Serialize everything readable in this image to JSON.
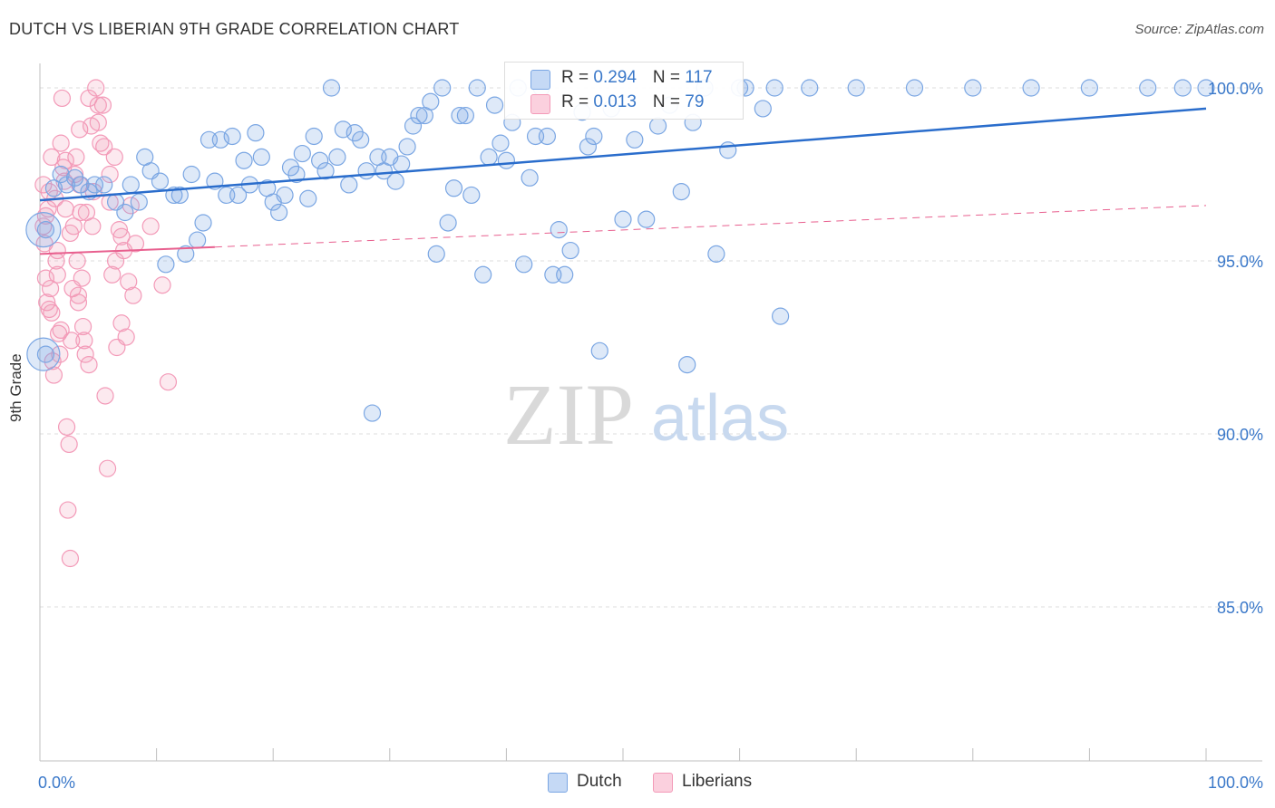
{
  "title": "DUTCH VS LIBERIAN 9TH GRADE CORRELATION CHART",
  "source": "Source: ZipAtlas.com",
  "watermark": {
    "zip": "ZIP",
    "atlas": "atlas"
  },
  "legend": {
    "rows": [
      {
        "r_label": "R = ",
        "r_value": "0.294",
        "n_label": "N = ",
        "n_value": "117"
      },
      {
        "r_label": "R = ",
        "r_value": "0.013",
        "n_label": "N = ",
        "n_value": "79"
      }
    ]
  },
  "chart_data": {
    "type": "scatter",
    "title": "DUTCH VS LIBERIAN 9TH GRADE CORRELATION CHART",
    "xlabel": "",
    "ylabel": "9th Grade",
    "xlim": [
      0,
      100
    ],
    "ylim": [
      80.5,
      100.5
    ],
    "x_tick_labels": [
      "0.0%",
      "100.0%"
    ],
    "y_ticks": [
      85,
      90,
      95,
      100
    ],
    "y_tick_labels": [
      "85.0%",
      "90.0%",
      "95.0%",
      "100.0%"
    ],
    "grid": true,
    "legend_position": "top-center",
    "series": [
      {
        "name": "Dutch",
        "color": "#7aa6e3",
        "line_color": "#2a6dcc",
        "r": 0.294,
        "n": 117,
        "trend": {
          "x": [
            0,
            100
          ],
          "y": [
            96.75,
            99.4
          ]
        },
        "points": [
          [
            0.5,
            95.9
          ],
          [
            0.5,
            92.3
          ],
          [
            1.2,
            97.1
          ],
          [
            1.8,
            97.5
          ],
          [
            2.3,
            97.2
          ],
          [
            3.0,
            97.4
          ],
          [
            3.5,
            97.2
          ],
          [
            4.2,
            97.0
          ],
          [
            4.7,
            97.2
          ],
          [
            5.5,
            97.2
          ],
          [
            6.5,
            96.7
          ],
          [
            7.3,
            96.4
          ],
          [
            7.8,
            97.2
          ],
          [
            8.5,
            96.7
          ],
          [
            9.0,
            98.0
          ],
          [
            9.5,
            97.6
          ],
          [
            10.3,
            97.3
          ],
          [
            10.8,
            94.9
          ],
          [
            11.5,
            96.9
          ],
          [
            12.0,
            96.9
          ],
          [
            12.5,
            95.2
          ],
          [
            13.0,
            97.5
          ],
          [
            13.5,
            95.6
          ],
          [
            14.0,
            96.1
          ],
          [
            14.5,
            98.5
          ],
          [
            15.0,
            97.3
          ],
          [
            15.5,
            98.5
          ],
          [
            16.0,
            96.9
          ],
          [
            16.5,
            98.6
          ],
          [
            17.0,
            96.9
          ],
          [
            17.5,
            97.9
          ],
          [
            18.0,
            97.2
          ],
          [
            18.5,
            98.7
          ],
          [
            19.0,
            98.0
          ],
          [
            19.5,
            97.1
          ],
          [
            20.0,
            96.7
          ],
          [
            20.5,
            96.4
          ],
          [
            21.0,
            96.9
          ],
          [
            21.5,
            97.7
          ],
          [
            22.0,
            97.5
          ],
          [
            22.5,
            98.1
          ],
          [
            23.0,
            96.8
          ],
          [
            23.5,
            98.6
          ],
          [
            24.0,
            97.9
          ],
          [
            24.5,
            97.6
          ],
          [
            25.0,
            100.0
          ],
          [
            25.5,
            98.0
          ],
          [
            26.0,
            98.8
          ],
          [
            26.5,
            97.2
          ],
          [
            27.0,
            98.7
          ],
          [
            27.5,
            98.5
          ],
          [
            28.0,
            97.6
          ],
          [
            28.5,
            90.6
          ],
          [
            29.0,
            98.0
          ],
          [
            29.5,
            97.6
          ],
          [
            30.0,
            98.0
          ],
          [
            30.5,
            97.3
          ],
          [
            31.0,
            97.8
          ],
          [
            31.5,
            98.3
          ],
          [
            32.0,
            98.9
          ],
          [
            32.5,
            99.2
          ],
          [
            33.0,
            99.2
          ],
          [
            33.5,
            99.6
          ],
          [
            34.0,
            95.2
          ],
          [
            34.5,
            100.0
          ],
          [
            35.0,
            96.1
          ],
          [
            35.5,
            97.1
          ],
          [
            36.0,
            99.2
          ],
          [
            36.5,
            99.2
          ],
          [
            37.0,
            96.9
          ],
          [
            37.5,
            100.0
          ],
          [
            38.0,
            94.6
          ],
          [
            38.5,
            98.0
          ],
          [
            39.0,
            99.5
          ],
          [
            39.5,
            98.4
          ],
          [
            40.0,
            97.9
          ],
          [
            40.5,
            99.0
          ],
          [
            41.0,
            100.0
          ],
          [
            41.5,
            94.9
          ],
          [
            42.0,
            97.4
          ],
          [
            42.5,
            98.6
          ],
          [
            43.0,
            100.0
          ],
          [
            43.5,
            98.6
          ],
          [
            44.0,
            94.6
          ],
          [
            44.5,
            95.9
          ],
          [
            45.0,
            94.6
          ],
          [
            45.5,
            95.3
          ],
          [
            46.5,
            99.3
          ],
          [
            47.0,
            98.3
          ],
          [
            47.5,
            98.6
          ],
          [
            48.0,
            92.4
          ],
          [
            49.0,
            99.4
          ],
          [
            50.0,
            96.2
          ],
          [
            51.0,
            98.5
          ],
          [
            52.0,
            96.2
          ],
          [
            53.0,
            98.9
          ],
          [
            54.0,
            99.5
          ],
          [
            55.0,
            97.0
          ],
          [
            55.5,
            92.0
          ],
          [
            56.0,
            99.0
          ],
          [
            57.0,
            100.0
          ],
          [
            58.0,
            95.2
          ],
          [
            59.0,
            98.2
          ],
          [
            60.0,
            100.0
          ],
          [
            60.5,
            100.0
          ],
          [
            62.0,
            99.4
          ],
          [
            63.0,
            100.0
          ],
          [
            63.5,
            93.4
          ],
          [
            66.0,
            100.0
          ],
          [
            70.0,
            100.0
          ],
          [
            75.0,
            100.0
          ],
          [
            80.0,
            100.0
          ],
          [
            85.0,
            100.0
          ],
          [
            90.0,
            100.0
          ],
          [
            95.0,
            100.0
          ],
          [
            98.0,
            100.0
          ],
          [
            100.0,
            100.0
          ]
        ]
      },
      {
        "name": "Liberians",
        "color": "#f39ab8",
        "line_color": "#e8608f",
        "r": 0.013,
        "n": 79,
        "trend": {
          "x": [
            0,
            15
          ],
          "y": [
            95.2,
            95.4
          ]
        },
        "projection": {
          "x": [
            15,
            100
          ],
          "y": [
            95.4,
            96.6
          ]
        },
        "points": [
          [
            0.3,
            96.0
          ],
          [
            0.4,
            95.5
          ],
          [
            0.5,
            94.5
          ],
          [
            0.6,
            93.8
          ],
          [
            0.7,
            96.5
          ],
          [
            0.8,
            97.0
          ],
          [
            0.9,
            94.2
          ],
          [
            1.0,
            93.5
          ],
          [
            1.1,
            92.1
          ],
          [
            1.2,
            91.7
          ],
          [
            1.3,
            96.8
          ],
          [
            1.4,
            95.0
          ],
          [
            1.5,
            94.6
          ],
          [
            1.6,
            92.9
          ],
          [
            1.7,
            92.3
          ],
          [
            1.8,
            98.4
          ],
          [
            1.9,
            99.7
          ],
          [
            2.0,
            97.7
          ],
          [
            2.1,
            97.3
          ],
          [
            2.2,
            96.5
          ],
          [
            2.3,
            90.2
          ],
          [
            2.4,
            87.8
          ],
          [
            2.5,
            89.7
          ],
          [
            2.6,
            86.4
          ],
          [
            2.7,
            92.7
          ],
          [
            2.8,
            94.2
          ],
          [
            2.9,
            96.0
          ],
          [
            3.0,
            97.5
          ],
          [
            3.1,
            98.0
          ],
          [
            3.2,
            95.0
          ],
          [
            3.3,
            93.8
          ],
          [
            3.4,
            97.2
          ],
          [
            3.5,
            96.4
          ],
          [
            3.6,
            94.5
          ],
          [
            3.7,
            93.1
          ],
          [
            3.8,
            92.7
          ],
          [
            3.9,
            92.3
          ],
          [
            4.0,
            96.4
          ],
          [
            4.2,
            99.7
          ],
          [
            4.4,
            98.9
          ],
          [
            4.6,
            97.0
          ],
          [
            4.8,
            100.0
          ],
          [
            5.0,
            99.0
          ],
          [
            5.2,
            98.4
          ],
          [
            5.4,
            99.5
          ],
          [
            5.6,
            91.1
          ],
          [
            5.8,
            89.0
          ],
          [
            6.0,
            96.7
          ],
          [
            6.2,
            94.6
          ],
          [
            6.4,
            98.0
          ],
          [
            6.6,
            92.5
          ],
          [
            6.8,
            95.9
          ],
          [
            7.0,
            93.2
          ],
          [
            7.2,
            95.3
          ],
          [
            7.4,
            92.8
          ],
          [
            7.6,
            94.4
          ],
          [
            7.8,
            96.6
          ],
          [
            8.2,
            95.5
          ],
          [
            0.5,
            96.3
          ],
          [
            0.8,
            93.6
          ],
          [
            1.5,
            95.3
          ],
          [
            2.2,
            97.9
          ],
          [
            3.3,
            94.0
          ],
          [
            4.5,
            96.0
          ],
          [
            5.5,
            98.3
          ],
          [
            6.5,
            95.0
          ],
          [
            8.0,
            94.0
          ],
          [
            9.5,
            96.0
          ],
          [
            10.5,
            94.3
          ],
          [
            11.0,
            91.5
          ],
          [
            0.3,
            97.2
          ],
          [
            1.0,
            98.0
          ],
          [
            1.8,
            93.0
          ],
          [
            2.6,
            95.8
          ],
          [
            3.4,
            98.8
          ],
          [
            4.2,
            92.0
          ],
          [
            5.0,
            99.5
          ],
          [
            6.0,
            97.5
          ],
          [
            7.0,
            95.7
          ]
        ]
      }
    ]
  }
}
